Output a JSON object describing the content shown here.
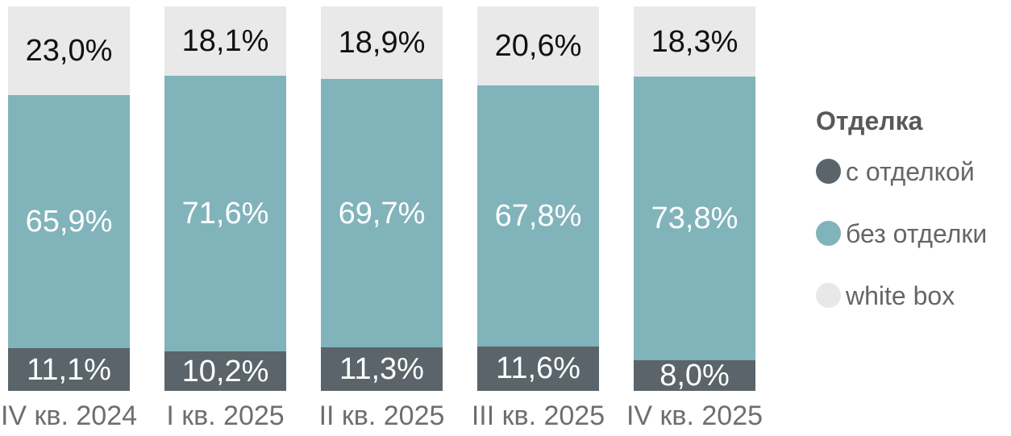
{
  "chart_data": {
    "type": "bar",
    "variant": "stacked-100-percent",
    "orientation": "vertical",
    "title": "",
    "xlabel": "",
    "ylabel": "",
    "ylim": [
      0,
      100
    ],
    "grid": false,
    "axes_visible": false,
    "legend_position": "right",
    "unit": "%",
    "decimal_separator": ",",
    "categories": [
      "IV кв. 2024",
      "I кв. 2025",
      "II кв. 2025",
      "III кв. 2025",
      "IV кв. 2025"
    ],
    "stack_order_bottom_to_top": [
      "с отделкой",
      "без отделки",
      "white box"
    ],
    "series": [
      {
        "name": "с отделкой",
        "color": "#5a646a",
        "text_color": "#ffffff",
        "values": [
          11.1,
          10.2,
          11.3,
          11.6,
          8.0
        ],
        "labels": [
          "11,1%",
          "10,2%",
          "11,3%",
          "11,6%",
          "8,0%"
        ]
      },
      {
        "name": "без отделки",
        "color": "#81b3bb",
        "text_color": "#ffffff",
        "values": [
          65.9,
          71.6,
          69.7,
          67.8,
          73.8
        ],
        "labels": [
          "65,9%",
          "71,6%",
          "69,7%",
          "67,8%",
          "73,8%"
        ]
      },
      {
        "name": "white box",
        "color": "#e9e9e9",
        "text_color": "#111111",
        "values": [
          23.0,
          18.1,
          18.9,
          20.6,
          18.3
        ],
        "labels": [
          "23,0%",
          "18,1%",
          "18,9%",
          "20,6%",
          "18,3%"
        ]
      }
    ]
  },
  "legend": {
    "title": "Отделка",
    "items": [
      {
        "label": "с отделкой",
        "color": "#5a646a"
      },
      {
        "label": "без отделки",
        "color": "#81b3bb"
      },
      {
        "label": "white box",
        "color": "#e8e8e8"
      }
    ]
  },
  "colors": {
    "background": "#ffffff",
    "category_label": "#6e6e6e",
    "legend_title": "#595959",
    "legend_text": "#666666"
  }
}
